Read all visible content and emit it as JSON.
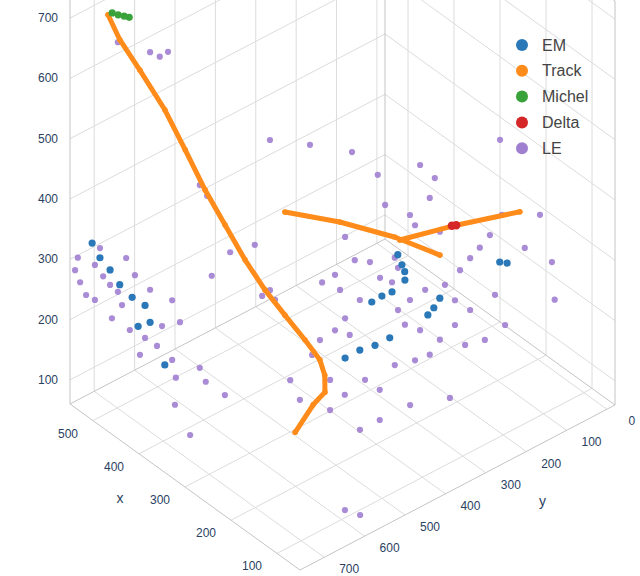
{
  "chart_data": {
    "type": "scatter3d",
    "x_label": "x",
    "y_label": "y",
    "xlim": [
      50,
      550
    ],
    "ylim": [
      -20,
      760
    ],
    "zlim": [
      60,
      730
    ],
    "xticks": [
      100,
      200,
      300,
      400,
      500
    ],
    "yticks": [
      0,
      100,
      200,
      300,
      400,
      500,
      600,
      700
    ],
    "zticks": [
      100,
      200,
      300,
      400,
      500,
      600,
      700
    ],
    "grid": true,
    "legend": "top-right",
    "series": [
      {
        "name": "EM",
        "color": "#2a78b8",
        "marker": "circle",
        "x": [
          537,
          520,
          498,
          477,
          450,
          422,
          437,
          411,
          379,
          347,
          315,
          282,
          250,
          289,
          267,
          245,
          217,
          250,
          241,
          235,
          211,
          198,
          185,
          125,
          109
        ],
        "y": [
          720,
          720,
          720,
          720,
          720,
          720,
          720,
          720,
          720,
          310,
          310,
          310,
          310,
          310,
          310,
          310,
          310,
          290,
          290,
          290,
          260,
          260,
          260,
          180,
          180
        ],
        "z": [
          320,
          305,
          297,
          284,
          278,
          280,
          237,
          258,
          205,
          90,
          121,
          147,
          177,
          215,
          237,
          256,
          291,
          308,
          296,
          288,
          219,
          238,
          261,
          326,
          333
        ]
      },
      {
        "name": "Track",
        "color": "#ff8c1a",
        "marker": "circle",
        "line_style": "solid",
        "x": [
          520,
          512,
          486,
          458,
          440,
          423,
          406,
          389,
          372,
          355,
          338,
          323,
          321,
          325,
          320,
          280,
          null,
          434,
          341,
          247,
          176,
          null,
          237,
          167,
          90
        ],
        "y": [
          700,
          680,
          660,
          630,
          600,
          570,
          540,
          510,
          480,
          450,
          420,
          400,
          390,
          385,
          420,
          510,
          null,
          360,
          330,
          300,
          270,
          null,
          300,
          240,
          170
        ],
        "z": [
          701,
          657,
          614,
          553,
          486,
          418,
          359,
          300,
          249,
          206,
          164,
          132,
          104,
          72,
          66,
          74,
          null,
          302,
          326,
          342,
          341,
          null,
          343,
          385,
          425
        ]
      },
      {
        "name": "Michel",
        "color": "#3aa23a",
        "marker": "circle",
        "x": [
          511,
          498,
          485,
          474
        ],
        "y": [
          700,
          700,
          700,
          700
        ],
        "z": [
          709,
          713,
          718,
          722
        ]
      },
      {
        "name": "Delta",
        "color": "#d62728",
        "marker": "circle",
        "x": [
          167,
          172
        ],
        "y": [
          240,
          245
        ],
        "z": [
          385,
          383
        ]
      },
      {
        "name": "LE",
        "color": "#a07fd0",
        "marker": "circle",
        "x": [
          539,
          528,
          515,
          533,
          531,
          513,
          498,
          481,
          531,
          472,
          494,
          455,
          422,
          396,
          385,
          363,
          346,
          411,
          444,
          463,
          520,
          363,
          355,
          303,
          290,
          277,
          411,
          390,
          372,
          481,
          303,
          287,
          357,
          324,
          237,
          433,
          264,
          247,
          236,
          247,
          280,
          345,
          182,
          203,
          160,
          84,
          51,
          216,
          248,
          183,
          140,
          74,
          172,
          140,
          248,
          287,
          270,
          332,
          276,
          184,
          152,
          260,
          163,
          206,
          347,
          326,
          369,
          397,
          358,
          315,
          347,
          369,
          337,
          239,
          195,
          163,
          141,
          184,
          217,
          232,
          206,
          173,
          130,
          141,
          195,
          239,
          293,
          271,
          245,
          232,
          196,
          163,
          196,
          185,
          163,
          142,
          120,
          109,
          87,
          131,
          174,
          207,
          98,
          94,
          99,
          73,
          67,
          132
        ],
        "y": [
          760,
          760,
          760,
          760,
          720,
          720,
          720,
          720,
          720,
          720,
          720,
          720,
          720,
          720,
          720,
          720,
          720,
          720,
          720,
          720,
          720,
          720,
          720,
          720,
          720,
          720,
          720,
          720,
          720,
          720,
          720,
          720,
          720,
          720,
          720,
          720,
          610,
          610,
          610,
          610,
          610,
          610,
          610,
          610,
          610,
          610,
          610,
          460,
          460,
          460,
          460,
          460,
          460,
          460,
          460,
          460,
          460,
          310,
          310,
          310,
          310,
          310,
          310,
          310,
          310,
          310,
          310,
          310,
          310,
          310,
          310,
          310,
          310,
          310,
          310,
          310,
          310,
          310,
          310,
          310,
          310,
          310,
          310,
          310,
          310,
          310,
          310,
          310,
          310,
          310,
          210,
          210,
          210,
          210,
          210,
          210,
          210,
          210,
          210,
          210,
          210,
          210,
          210,
          210,
          110,
          110,
          110,
          110
        ],
        "z": [
          288,
          274,
          260,
          312,
          287,
          278,
          272,
          270,
          229,
          253,
          219,
          221,
          226,
          227,
          266,
          321,
          294,
          312,
          318,
          336,
          321,
          222,
          197,
          242,
          226,
          409,
          706,
          710,
          728,
          684,
          545,
          536,
          151,
          119,
          470,
          192,
          344,
          363,
          353,
          612,
          420,
          135,
          217,
          238,
          652,
          88,
          98,
          154,
          111,
          114,
          154,
          215,
          203,
          204,
          161,
          181,
          215,
          440,
          433,
          500,
          496,
          392,
          457,
          405,
          291,
          264,
          216,
          188,
          197,
          204,
          156,
          124,
          134,
          138,
          170,
          197,
          234,
          226,
          217,
          233,
          264,
          299,
          331,
          413,
          394,
          316,
          279,
          265,
          272,
          303,
          234,
          236,
          193,
          290,
          322,
          351,
          384,
          291,
          253,
          204,
          172,
          66,
          554,
          432,
          394,
          330,
          271,
          321
        ]
      }
    ]
  }
}
